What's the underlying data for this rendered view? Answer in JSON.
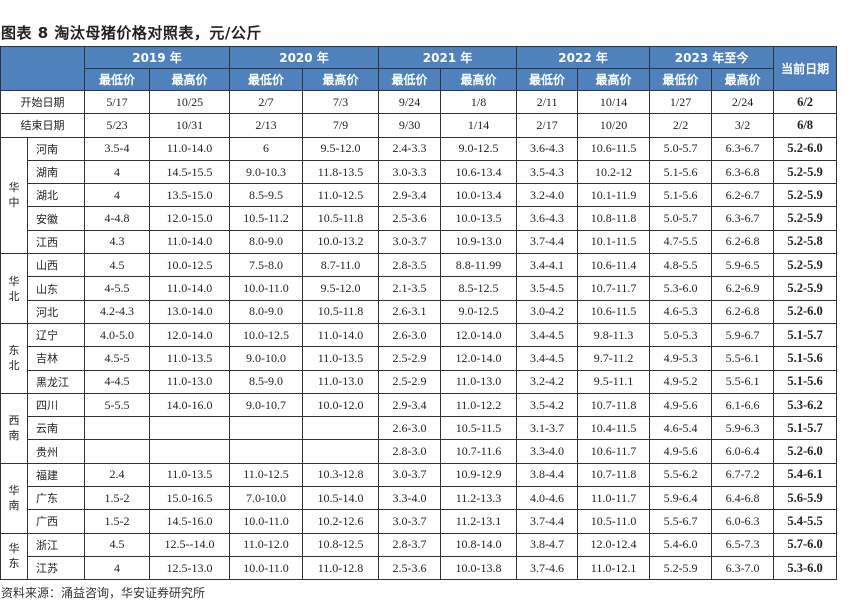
{
  "title": "图表 8 淘汰母猪价格对照表，元/公斤",
  "source": "资料来源：涌益咨询，华安证券研究所",
  "header_color": "#4F81BD",
  "years": [
    "2019 年",
    "2020 年",
    "2021 年",
    "2022 年",
    "2023 年至今"
  ],
  "current_label": "当前日期",
  "sub_low": "最低价",
  "sub_high": "最高价",
  "date_rows": [
    {
      "label": "开始日期",
      "values": [
        "5/17",
        "10/25",
        "2/7",
        "7/3",
        "9/24",
        "1/8",
        "2/11",
        "10/14",
        "1/27",
        "2/24"
      ],
      "current": "6/2"
    },
    {
      "label": "结束日期",
      "values": [
        "5/23",
        "10/31",
        "2/13",
        "7/9",
        "9/30",
        "1/14",
        "2/17",
        "10/20",
        "2/2",
        "3/2"
      ],
      "current": "6/8"
    }
  ],
  "regions": [
    {
      "name": "华中",
      "rows": [
        {
          "province": "河南",
          "values": [
            "3.5-4",
            "11.0-14.0",
            "6",
            "9.5-12.0",
            "2.4-3.3",
            "9.0-12.5",
            "3.6-4.3",
            "10.6-11.5",
            "5.0-5.7",
            "6.3-6.7"
          ],
          "current": "5.2-6.0"
        },
        {
          "province": "湖南",
          "values": [
            "4",
            "14.5-15.5",
            "9.0-10.3",
            "11.8-13.5",
            "3.0-3.3",
            "10.6-13.4",
            "3.5-4.3",
            "10.2-12",
            "5.1-5.6",
            "6.3-6.8"
          ],
          "current": "5.2-5.9"
        },
        {
          "province": "湖北",
          "values": [
            "4",
            "13.5-15.0",
            "8.5-9.5",
            "11.0-12.5",
            "2.9-3.4",
            "10.0-13.4",
            "3.2-4.0",
            "10.1-11.9",
            "5.1-5.6",
            "6.2-6.7"
          ],
          "current": "5.2-5.9"
        },
        {
          "province": "安徽",
          "values": [
            "4-4.8",
            "12.0-15.0",
            "10.5-11.2",
            "10.5-11.8",
            "2.5-3.6",
            "10.0-13.5",
            "3.6-4.3",
            "10.8-11.8",
            "5.0-5.7",
            "6.3-6.7"
          ],
          "current": "5.2-5.9"
        },
        {
          "province": "江西",
          "values": [
            "4.3",
            "11.0-14.0",
            "8.0-9.0",
            "10.0-13.2",
            "3.0-3.7",
            "10.9-13.0",
            "3.7-4.4",
            "10.1-11.5",
            "4.7-5.5",
            "6.2-6.8"
          ],
          "current": "5.2-5.8"
        }
      ]
    },
    {
      "name": "华北",
      "rows": [
        {
          "province": "山西",
          "values": [
            "4.5",
            "10.0-12.5",
            "7.5-8.0",
            "8.7-11.0",
            "2.8-3.5",
            "8.8-11.99",
            "3.4-4.1",
            "10.6-11.4",
            "4.8-5.5",
            "5.9-6.5"
          ],
          "current": "5.2-5.9"
        },
        {
          "province": "山东",
          "values": [
            "4-5.5",
            "11.0-14.0",
            "10.0-11.0",
            "9.5-12.0",
            "2.1-3.5",
            "8.5-12.5",
            "3.5-4.5",
            "10.7-11.7",
            "5.3-6.0",
            "6.2-6.9"
          ],
          "current": "5.2-5.9"
        },
        {
          "province": "河北",
          "values": [
            "4.2-4.3",
            "13.0-14.0",
            "8.0-9.0",
            "10.5-11.8",
            "2.6-3.1",
            "9.0-12.5",
            "3.0-4.2",
            "10.6-11.5",
            "4.6-5.3",
            "6.2-6.8"
          ],
          "current": "5.2-6.0"
        }
      ]
    },
    {
      "name": "东北",
      "rows": [
        {
          "province": "辽宁",
          "values": [
            "4.0-5.0",
            "12.0-14.0",
            "10.0-12.5",
            "11.0-14.0",
            "2.6-3.0",
            "12.0-14.0",
            "3.4-4.5",
            "9.8-11.3",
            "5.0-5.3",
            "5.9-6.7"
          ],
          "current": "5.1-5.7"
        },
        {
          "province": "吉林",
          "values": [
            "4.5-5",
            "11.0-13.5",
            "9.0-10.0",
            "11.0-13.5",
            "2.5-2.9",
            "12.0-14.0",
            "3.4-4.5",
            "9.7-11.2",
            "4.9-5.3",
            "5.5-6.1"
          ],
          "current": "5.1-5.6"
        },
        {
          "province": "黑龙江",
          "values": [
            "4-4.5",
            "11.0-13.0",
            "8.5-9.0",
            "11.0-13.0",
            "2.5-2.9",
            "11.0-13.0",
            "3.2-4.2",
            "9.5-11.1",
            "4.9-5.2",
            "5.5-6.1"
          ],
          "current": "5.1-5.6"
        }
      ]
    },
    {
      "name": "西南",
      "rows": [
        {
          "province": "四川",
          "values": [
            "5-5.5",
            "14.0-16.0",
            "9.0-10.7",
            "10.0-12.0",
            "2.9-3.4",
            "11.0-12.2",
            "3.5-4.2",
            "10.7-11.8",
            "4.9-5.6",
            "6.1-6.6"
          ],
          "current": "5.3-6.2"
        },
        {
          "province": "云南",
          "values": [
            "",
            "",
            "",
            "",
            "2.6-3.0",
            "10.5-11.5",
            "3.1-3.7",
            "10.4-11.5",
            "4.6-5.4",
            "5.9-6.3"
          ],
          "current": "5.1-5.7"
        },
        {
          "province": "贵州",
          "values": [
            "",
            "",
            "",
            "",
            "2.8-3.0",
            "10.7-11.6",
            "3.3-4.0",
            "10.6-11.7",
            "4.9-5.6",
            "6.0-6.4"
          ],
          "current": "5.2-6.0"
        }
      ]
    },
    {
      "name": "华南",
      "rows": [
        {
          "province": "福建",
          "values": [
            "2.4",
            "11.0-13.5",
            "11.0-12.5",
            "10.3-12.8",
            "3.0-3.7",
            "10.9-12.9",
            "3.8-4.4",
            "10.7-11.8",
            "5.5-6.2",
            "6.7-7.2"
          ],
          "current": "5.4-6.1"
        },
        {
          "province": "广东",
          "values": [
            "1.5-2",
            "15.0-16.5",
            "7.0-10.0",
            "10.5-14.0",
            "3.3-4.0",
            "11.2-13.3",
            "4.0-4.6",
            "11.0-11.7",
            "5.9-6.4",
            "6.4-6.8"
          ],
          "current": "5.6-5.9"
        },
        {
          "province": "广西",
          "values": [
            "1.5-2",
            "14.5-16.0",
            "10.0-11.0",
            "10.2-12.6",
            "3.0-3.7",
            "11.2-13.1",
            "3.7-4.4",
            "10.5-11.0",
            "5.5-6.7",
            "6.0-6.3"
          ],
          "current": "5.4-5.5"
        }
      ]
    },
    {
      "name": "华东",
      "rows": [
        {
          "province": "浙江",
          "values": [
            "4.5",
            "12.5--14.0",
            "11.0-12.0",
            "10.8-12.5",
            "2.8-3.7",
            "10.8-14.0",
            "3.8-4.7",
            "12.0-12.4",
            "5.4-6.0",
            "6.5-7.3"
          ],
          "current": "5.7-6.0"
        },
        {
          "province": "江苏",
          "values": [
            "4",
            "12.5-13.0",
            "10.0-11.0",
            "11.0-12.8",
            "2.5-3.6",
            "10.0-13.8",
            "3.7-4.6",
            "11.0-12.1",
            "5.2-5.9",
            "6.3-7.0"
          ],
          "current": "5.3-6.0"
        }
      ]
    }
  ]
}
